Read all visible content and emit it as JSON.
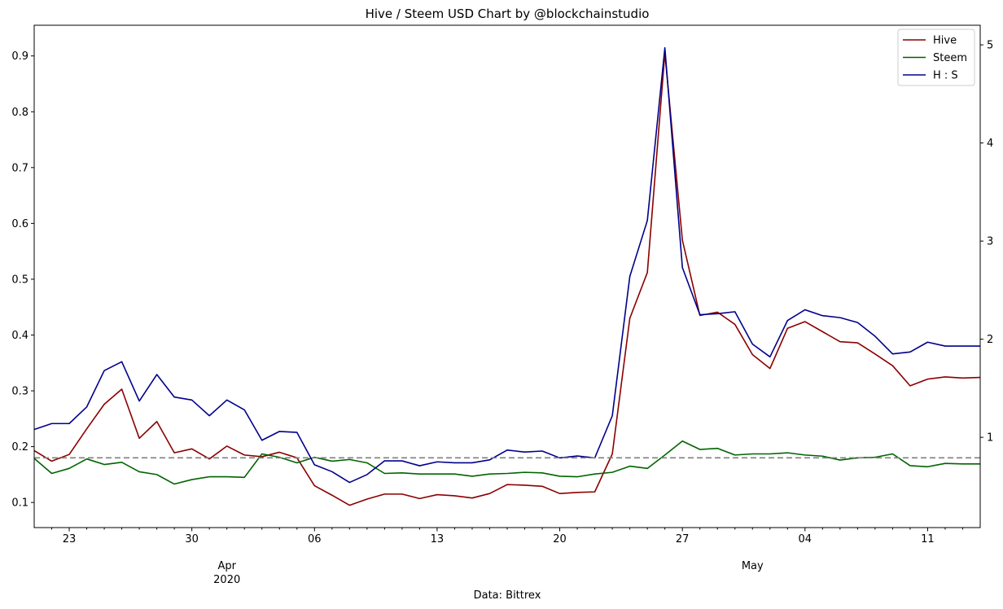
{
  "chart_data": {
    "type": "line",
    "title": "Hive / Steem USD Chart by @blockchainstudio",
    "xlabel": "Data: Bittrex",
    "ylabel": "",
    "ylim": [
      0.055,
      0.955
    ],
    "y2lim": [
      0.08,
      5.2
    ],
    "x_range": [
      "2020-03-21",
      "2020-05-14"
    ],
    "yticks": [
      0.1,
      0.2,
      0.3,
      0.4,
      0.5,
      0.6,
      0.7,
      0.8,
      0.9
    ],
    "ytick_labels": [
      "0.1",
      "0.2",
      "0.3",
      "0.4",
      "0.5",
      "0.6",
      "0.7",
      "0.8",
      "0.9"
    ],
    "y2ticks": [
      1,
      2,
      3,
      4,
      5
    ],
    "y2tick_labels": [
      "1",
      "2",
      "3",
      "4",
      "5"
    ],
    "xticks": [
      {
        "date": "2020-03-23",
        "label": "23"
      },
      {
        "date": "2020-03-30",
        "label": "30"
      },
      {
        "date": "2020-04-06",
        "label": "06"
      },
      {
        "date": "2020-04-13",
        "label": "13"
      },
      {
        "date": "2020-04-20",
        "label": "20"
      },
      {
        "date": "2020-04-27",
        "label": "27"
      },
      {
        "date": "2020-05-04",
        "label": "04"
      },
      {
        "date": "2020-05-11",
        "label": "11"
      }
    ],
    "xtick_minor": [
      "2020-03-22",
      "2020-03-24",
      "2020-03-25",
      "2020-03-26",
      "2020-03-27",
      "2020-03-28",
      "2020-03-29",
      "2020-03-31",
      "2020-04-01",
      "2020-04-02",
      "2020-04-03",
      "2020-04-04",
      "2020-04-05",
      "2020-04-07",
      "2020-04-08",
      "2020-04-09",
      "2020-04-10",
      "2020-04-11",
      "2020-04-12",
      "2020-04-14",
      "2020-04-15",
      "2020-04-16",
      "2020-04-17",
      "2020-04-18",
      "2020-04-19",
      "2020-04-21",
      "2020-04-22",
      "2020-04-23",
      "2020-04-24",
      "2020-04-25",
      "2020-04-26",
      "2020-04-28",
      "2020-04-29",
      "2020-04-30",
      "2020-05-01",
      "2020-05-02",
      "2020-05-03",
      "2020-05-05",
      "2020-05-06",
      "2020-05-07",
      "2020-05-08",
      "2020-05-09",
      "2020-05-10",
      "2020-05-12",
      "2020-05-13"
    ],
    "month_labels": [
      {
        "date": "2020-04-01",
        "label": "Apr",
        "sublabel": "2020"
      },
      {
        "date": "2020-05-01",
        "label": "May",
        "sublabel": ""
      }
    ],
    "grid": false,
    "legend_position": "top-right",
    "reference_line": {
      "y": 0.18,
      "style": "dashed",
      "color": "#808080"
    },
    "x": [
      "2020-03-21",
      "2020-03-22",
      "2020-03-23",
      "2020-03-24",
      "2020-03-25",
      "2020-03-26",
      "2020-03-27",
      "2020-03-28",
      "2020-03-29",
      "2020-03-30",
      "2020-03-31",
      "2020-04-01",
      "2020-04-02",
      "2020-04-03",
      "2020-04-04",
      "2020-04-05",
      "2020-04-06",
      "2020-04-07",
      "2020-04-08",
      "2020-04-09",
      "2020-04-10",
      "2020-04-11",
      "2020-04-12",
      "2020-04-13",
      "2020-04-14",
      "2020-04-15",
      "2020-04-16",
      "2020-04-17",
      "2020-04-18",
      "2020-04-19",
      "2020-04-20",
      "2020-04-21",
      "2020-04-22",
      "2020-04-23",
      "2020-04-24",
      "2020-04-25",
      "2020-04-26",
      "2020-04-27",
      "2020-04-28",
      "2020-04-29",
      "2020-04-30",
      "2020-05-01",
      "2020-05-02",
      "2020-05-03",
      "2020-05-04",
      "2020-05-05",
      "2020-05-06",
      "2020-05-07",
      "2020-05-08",
      "2020-05-09",
      "2020-05-10",
      "2020-05-11",
      "2020-05-12",
      "2020-05-13",
      "2020-05-14"
    ],
    "series": [
      {
        "name": "Hive",
        "axis": "left",
        "color": "#8b0000",
        "values": [
          0.193,
          0.174,
          0.186,
          0.232,
          0.276,
          0.303,
          0.215,
          0.245,
          0.189,
          0.196,
          0.178,
          0.201,
          0.185,
          0.182,
          0.19,
          0.18,
          0.13,
          0.113,
          0.095,
          0.106,
          0.115,
          0.115,
          0.107,
          0.114,
          0.112,
          0.108,
          0.116,
          0.132,
          0.131,
          0.129,
          0.116,
          0.118,
          0.119,
          0.187,
          0.43,
          0.512,
          0.905,
          0.57,
          0.435,
          0.441,
          0.419,
          0.365,
          0.34,
          0.412,
          0.424,
          0.406,
          0.388,
          0.386,
          0.366,
          0.345,
          0.309,
          0.321,
          0.325,
          0.323,
          0.324
        ]
      },
      {
        "name": "Steem",
        "axis": "left",
        "color": "#006400",
        "values": [
          0.179,
          0.152,
          0.161,
          0.178,
          0.168,
          0.172,
          0.155,
          0.15,
          0.133,
          0.141,
          0.146,
          0.146,
          0.145,
          0.187,
          0.181,
          0.171,
          0.181,
          0.174,
          0.177,
          0.171,
          0.152,
          0.153,
          0.151,
          0.151,
          0.151,
          0.147,
          0.151,
          0.152,
          0.154,
          0.153,
          0.147,
          0.146,
          0.151,
          0.154,
          0.165,
          0.161,
          0.185,
          0.21,
          0.195,
          0.197,
          0.185,
          0.187,
          0.187,
          0.189,
          0.185,
          0.183,
          0.176,
          0.18,
          0.181,
          0.187,
          0.166,
          0.164,
          0.17,
          0.169,
          0.169
        ]
      },
      {
        "name": "H : S",
        "axis": "right",
        "color": "#00008b",
        "values": [
          1.08,
          1.14,
          1.14,
          1.31,
          1.68,
          1.77,
          1.37,
          1.64,
          1.41,
          1.38,
          1.22,
          1.38,
          1.28,
          0.97,
          1.06,
          1.05,
          0.72,
          0.65,
          0.54,
          0.62,
          0.76,
          0.76,
          0.71,
          0.75,
          0.74,
          0.74,
          0.77,
          0.87,
          0.85,
          0.86,
          0.79,
          0.81,
          0.79,
          1.22,
          2.64,
          3.21,
          4.97,
          2.73,
          2.25,
          2.26,
          2.28,
          1.95,
          1.82,
          2.19,
          2.3,
          2.24,
          2.22,
          2.17,
          2.03,
          1.85,
          1.87,
          1.97,
          1.93,
          1.93,
          1.93
        ]
      }
    ]
  }
}
